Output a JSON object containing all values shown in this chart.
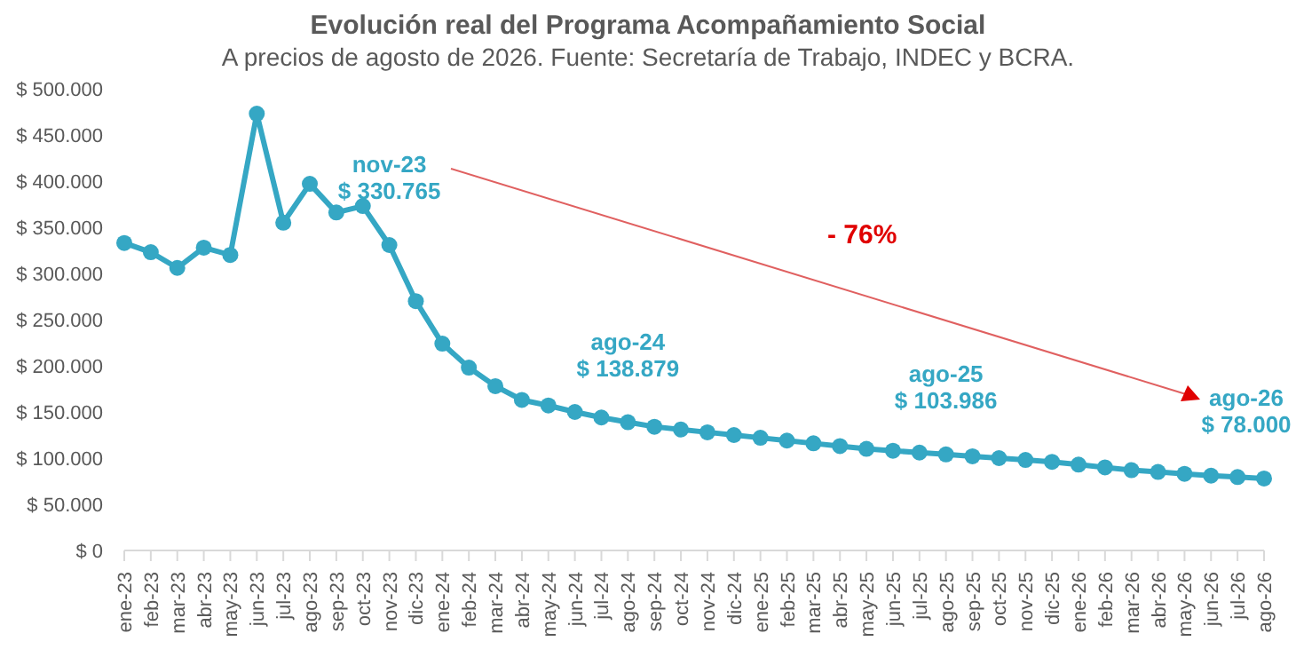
{
  "chart_data": {
    "type": "line",
    "title": "Evolución real del Programa Acompañamiento Social",
    "subtitle": "A precios de agosto de 2026. Fuente: Secretaría de Trabajo, INDEC y BCRA.",
    "categories": [
      "ene-23",
      "feb-23",
      "mar-23",
      "abr-23",
      "may-23",
      "jun-23",
      "jul-23",
      "ago-23",
      "sep-23",
      "oct-23",
      "nov-23",
      "dic-23",
      "ene-24",
      "feb-24",
      "mar-24",
      "abr-24",
      "may-24",
      "jun-24",
      "jul-24",
      "ago-24",
      "sep-24",
      "oct-24",
      "nov-24",
      "dic-24",
      "ene-25",
      "feb-25",
      "mar-25",
      "abr-25",
      "may-25",
      "jun-25",
      "jul-25",
      "ago-25",
      "sep-25",
      "oct-25",
      "nov-25",
      "dic-25",
      "ene-26",
      "feb-26",
      "mar-26",
      "abr-26",
      "may-26",
      "jun-26",
      "jul-26",
      "ago-26"
    ],
    "series": [
      {
        "color": "#35a7c4",
        "values": [
          333000,
          323000,
          306000,
          328000,
          320000,
          473000,
          355000,
          397000,
          366000,
          373000,
          330765,
          270000,
          224000,
          198000,
          178000,
          163000,
          157000,
          150000,
          144000,
          138879,
          134000,
          131000,
          128000,
          125000,
          122000,
          119000,
          116000,
          113000,
          110000,
          108000,
          106000,
          103986,
          102000,
          100000,
          98000,
          96000,
          93000,
          90000,
          87000,
          85000,
          83000,
          81000,
          79500,
          78000
        ]
      }
    ],
    "ylim": [
      0,
      500000
    ],
    "yticks": [
      {
        "value": 0,
        "label": "$ 0"
      },
      {
        "value": 50000,
        "label": "$ 50.000"
      },
      {
        "value": 100000,
        "label": "$ 100.000"
      },
      {
        "value": 150000,
        "label": "$ 150.000"
      },
      {
        "value": 200000,
        "label": "$ 200.000"
      },
      {
        "value": 250000,
        "label": "$ 250.000"
      },
      {
        "value": 300000,
        "label": "$ 300.000"
      },
      {
        "value": 350000,
        "label": "$ 350.000"
      },
      {
        "value": 400000,
        "label": "$ 400.000"
      },
      {
        "value": 450000,
        "label": "$ 450.000"
      },
      {
        "value": 500000,
        "label": "$ 500.000"
      }
    ],
    "annotations": [
      {
        "text": "nov-23\n$ 330.765",
        "x": "nov-23",
        "y": 330765
      },
      {
        "text": "ago-24\n$ 138.879",
        "x": "ago-24",
        "y": 138879
      },
      {
        "text": "ago-25\n$ 103.986",
        "x": "ago-25",
        "y": 103986
      },
      {
        "text": "ago-26\n$ 78.000",
        "x": "ago-26",
        "y": 78000
      },
      "- 76%"
    ],
    "grid": false,
    "legend": false,
    "marker": "circle",
    "line_style": "solid"
  }
}
